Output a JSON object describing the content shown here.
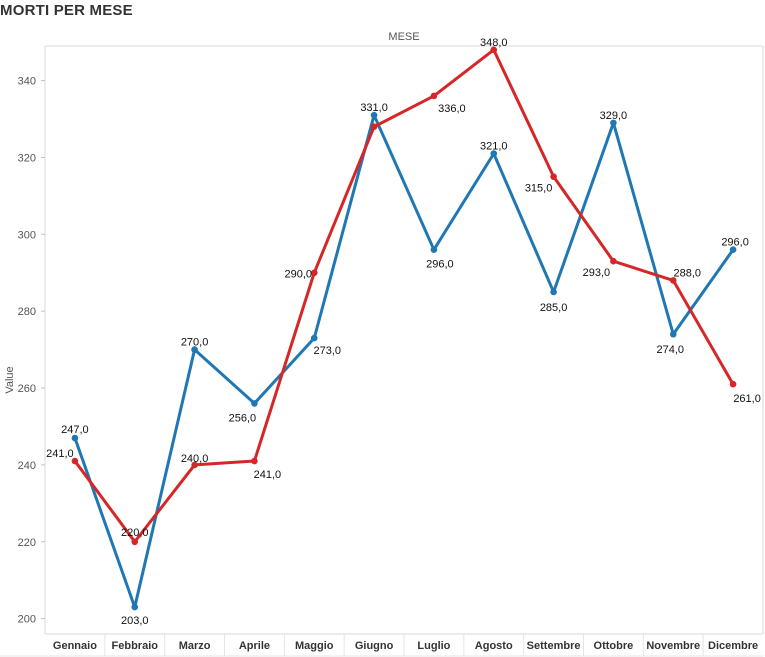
{
  "page": {
    "title": "MORTI PER MESE"
  },
  "chart_data": {
    "type": "line",
    "title": "MORTI PER MESE",
    "header_label": "MESE",
    "xlabel": "",
    "ylabel": "Value",
    "ylim": [
      196,
      349
    ],
    "yticks": [
      200,
      220,
      240,
      260,
      280,
      300,
      320,
      340
    ],
    "grid": false,
    "legend": "none",
    "categories": [
      "Gennaio",
      "Febbraio",
      "Marzo",
      "Aprile",
      "Maggio",
      "Giugno",
      "Luglio",
      "Agosto",
      "Settembre",
      "Ottobre",
      "Novembre",
      "Dicembre"
    ],
    "series": [
      {
        "color": "#1f77b4",
        "values": [
          247,
          203,
          270,
          256,
          273,
          331,
          296,
          321,
          285,
          329,
          274,
          296
        ],
        "labels": [
          "247,0",
          "203,0",
          "270,0",
          "256,0",
          "273,0",
          "331,0",
          "296,0",
          "321,0",
          "285,0",
          "329,0",
          "274,0",
          "296,0"
        ]
      },
      {
        "color": "#d62728",
        "values": [
          241,
          220,
          240,
          241,
          290,
          328,
          336,
          348,
          315,
          293,
          288,
          261
        ],
        "labels": [
          "241,0",
          "220,0",
          "240,0",
          "241,0",
          "290,0",
          "",
          "336,0",
          "348,0",
          "315,0",
          "293,0",
          "288,0",
          "261,0"
        ]
      }
    ]
  }
}
